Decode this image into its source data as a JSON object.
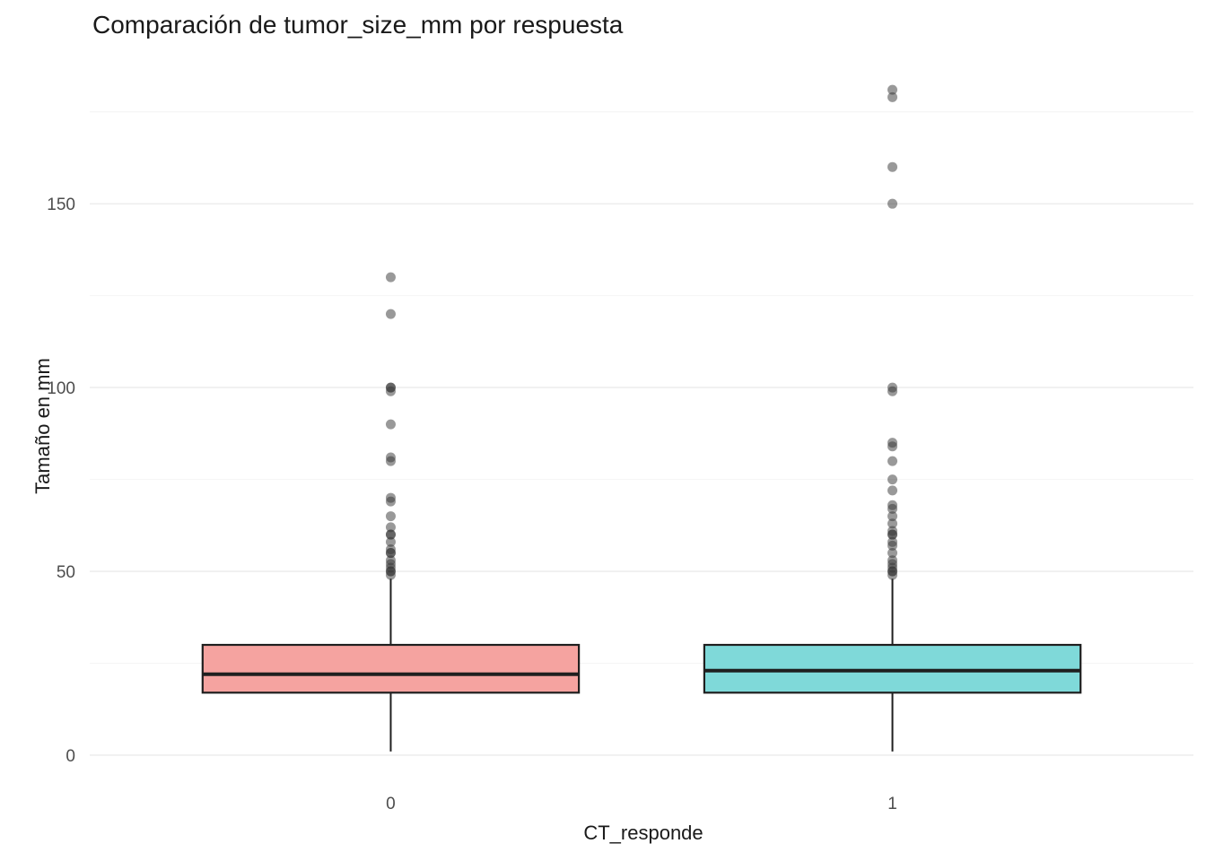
{
  "chart_data": {
    "type": "boxplot",
    "title": "Comparación de tumor_size_mm por respuesta",
    "xlabel": "CT_responde",
    "ylabel": "Tamaño en mm",
    "ylim": [
      -8.3,
      190.3
    ],
    "yticks": [
      0,
      50,
      100,
      150
    ],
    "categories": [
      "0",
      "1"
    ],
    "grid": {
      "minor": [
        25,
        75,
        125,
        175
      ],
      "major_color": "#EBEBEB",
      "minor_color": "#F4F4F4"
    },
    "point_color": "#333333",
    "point_opacity": 0.5,
    "series": [
      {
        "category": "0",
        "color": "#F5A3A0",
        "stroke": "#1f1f1f",
        "whisker_low": 1,
        "q1": 17,
        "median": 22,
        "q3": 30,
        "whisker_high": 48,
        "outliers": [
          49,
          50,
          50,
          51,
          52,
          53,
          55,
          55,
          56,
          58,
          60,
          60,
          62,
          65,
          69,
          70,
          80,
          81,
          90,
          99,
          100,
          100,
          120,
          130
        ]
      },
      {
        "category": "1",
        "color": "#7FD9D9",
        "stroke": "#1f1f1f",
        "whisker_low": 1,
        "q1": 17,
        "median": 23,
        "q3": 30,
        "whisker_high": 48,
        "outliers": [
          49,
          50,
          50,
          51,
          52,
          53,
          55,
          57,
          58,
          60,
          60,
          61,
          63,
          65,
          67,
          68,
          72,
          75,
          80,
          84,
          85,
          99,
          100,
          150,
          160,
          179,
          181
        ]
      }
    ]
  }
}
